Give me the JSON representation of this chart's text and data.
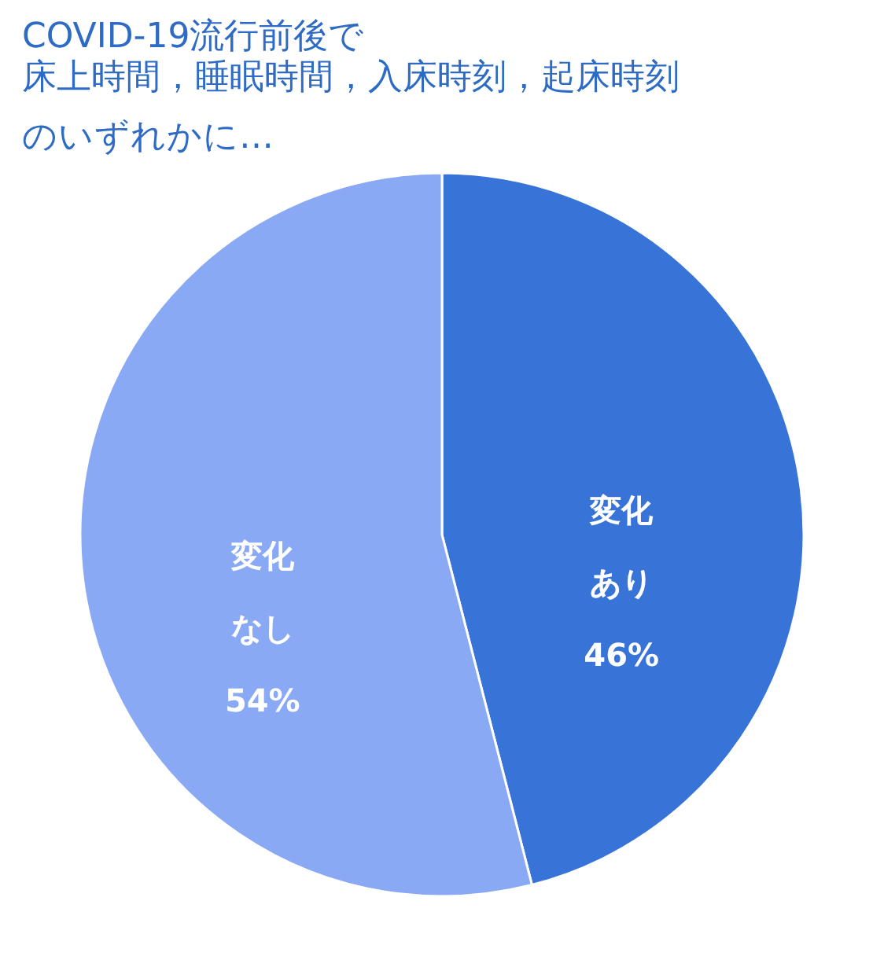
{
  "chart_data": {
    "type": "pie",
    "title": "COVID-19流行前後で",
    "subtitle": "床上時間，睡眠時間，入床時刻，起床時刻のいずれかに…",
    "categories": [
      "変化あり",
      "変化なし"
    ],
    "values": [
      46,
      54
    ],
    "value_labels": [
      "46%",
      "54%"
    ],
    "colors": [
      "#3873d8",
      "#8aa9f5"
    ],
    "legend": false
  }
}
